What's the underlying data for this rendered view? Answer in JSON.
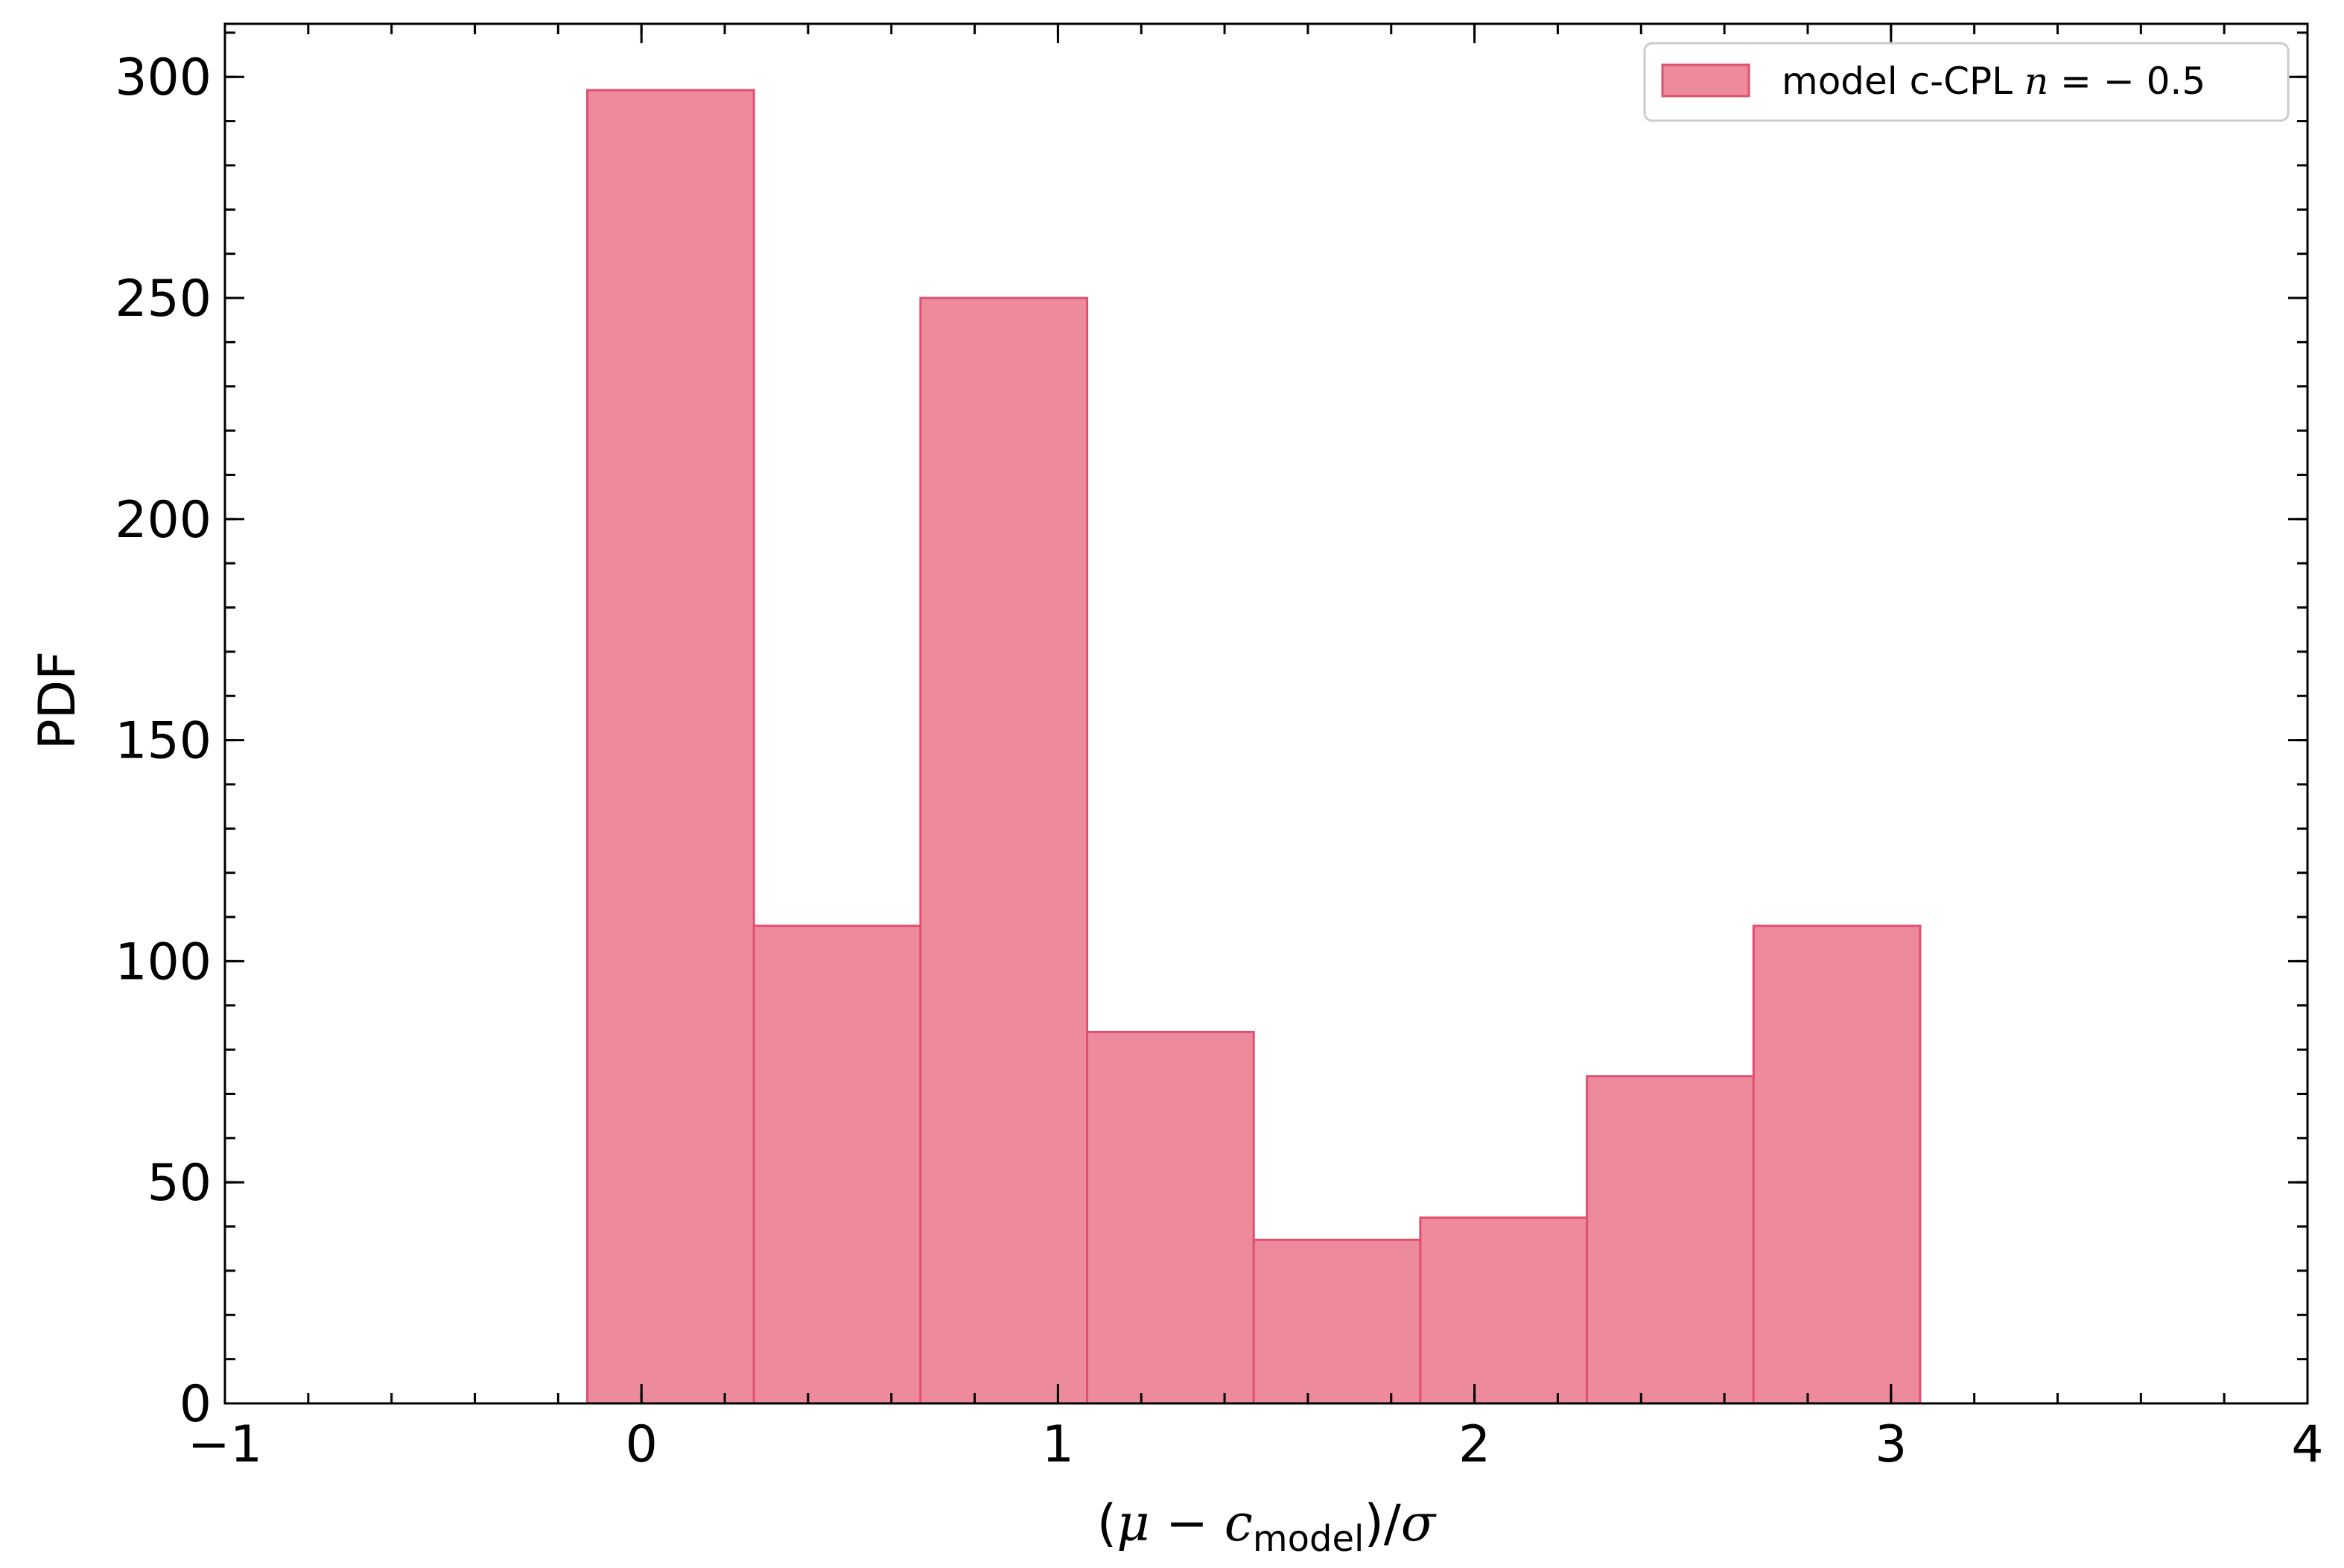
{
  "chart_data": {
    "type": "bar",
    "subtype": "histogram",
    "title": "",
    "xlabel_parts": {
      "open": "(",
      "mu": "μ",
      "minus": " − ",
      "c": "c",
      "sub": "model",
      "close": ")/",
      "sigma": "σ"
    },
    "ylabel": "PDF",
    "xlim": [
      -1,
      4
    ],
    "ylim": [
      0,
      312
    ],
    "xticks": [
      -1,
      0,
      1,
      2,
      3,
      4
    ],
    "xtick_labels": [
      "−1",
      "0",
      "1",
      "2",
      "3",
      "4"
    ],
    "yticks": [
      0,
      50,
      100,
      150,
      200,
      250,
      300
    ],
    "ytick_labels": [
      "0",
      "50",
      "100",
      "150",
      "200",
      "250",
      "300"
    ],
    "x_minor_step": 0.2,
    "y_minor_step": 10,
    "grid": false,
    "legend": {
      "placement": "top-right",
      "label_parts": {
        "text": "model c-CPL ",
        "n": "n",
        "rest": " = − 0.5"
      }
    },
    "colors": {
      "face": "#ed8a9c",
      "edge": "#e0506f"
    },
    "bins": [
      {
        "left": -0.13,
        "right": 0.27,
        "value": 297
      },
      {
        "left": 0.27,
        "right": 0.67,
        "value": 108
      },
      {
        "left": 0.67,
        "right": 1.07,
        "value": 250
      },
      {
        "left": 1.07,
        "right": 1.47,
        "value": 84
      },
      {
        "left": 1.47,
        "right": 1.87,
        "value": 37
      },
      {
        "left": 1.87,
        "right": 2.27,
        "value": 42
      },
      {
        "left": 2.27,
        "right": 2.67,
        "value": 74
      },
      {
        "left": 2.67,
        "right": 3.07,
        "value": 108
      }
    ],
    "baseline_segments": [
      [
        -0.53,
        -0.13
      ],
      [
        3.07,
        3.47
      ]
    ]
  }
}
